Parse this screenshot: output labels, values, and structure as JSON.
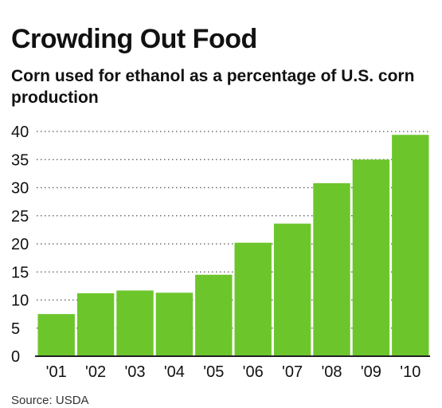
{
  "title": "Crowding Out Food",
  "subtitle": "Corn used for ethanol as a percentage of U.S. corn production",
  "source": "Source: USDA",
  "colors": {
    "bar": "#6cc62b",
    "grid": "#555555",
    "axis": "#222222"
  },
  "chart_data": {
    "type": "bar",
    "title": "Crowding Out Food",
    "subtitle": "Corn used for ethanol as a percentage of U.S. corn production",
    "categories": [
      "'01",
      "'02",
      "'03",
      "'04",
      "'05",
      "'06",
      "'07",
      "'08",
      "'09",
      "'10"
    ],
    "values": [
      7.5,
      11.2,
      11.7,
      11.3,
      14.5,
      20.2,
      23.6,
      30.8,
      35.0,
      39.4
    ],
    "yticks": [
      0,
      5,
      10,
      15,
      20,
      25,
      30,
      35,
      40
    ],
    "ylim": [
      0,
      40
    ],
    "grid": "dotted-horizontal",
    "legend": "none"
  }
}
